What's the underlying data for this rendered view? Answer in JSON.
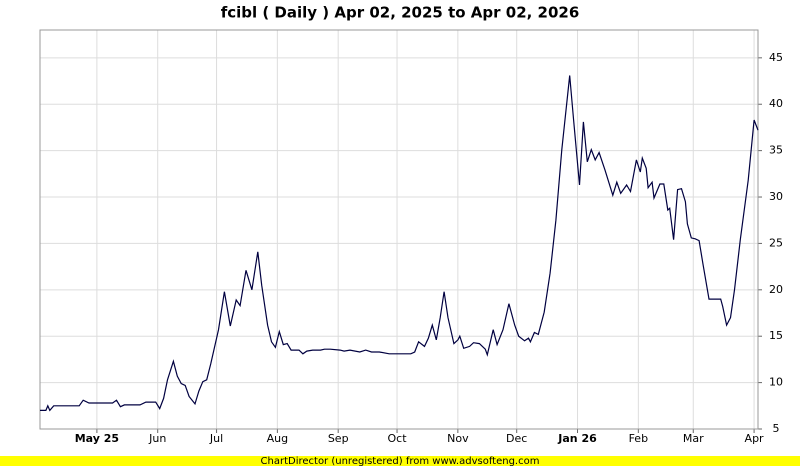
{
  "chart_data": {
    "type": "line",
    "title": "fcibl ( Daily ) Apr 02, 2025 to Apr 02, 2026",
    "footer": "ChartDirector (unregistered) from www.advsofteng.com",
    "x": [
      0,
      3,
      4,
      5,
      7,
      20,
      22,
      25,
      37,
      39,
      41,
      43,
      51,
      54,
      59,
      61,
      63,
      65,
      68,
      70,
      72,
      74,
      76,
      79,
      81,
      83,
      85,
      87,
      91,
      94,
      97,
      100,
      102,
      105,
      108,
      111,
      113,
      116,
      118,
      120,
      122,
      124,
      126,
      128,
      132,
      134,
      136,
      139,
      143,
      145,
      148,
      153,
      155,
      158,
      163,
      166,
      169,
      173,
      178,
      184,
      189,
      191,
      193,
      196,
      198,
      200,
      202,
      204,
      206,
      208,
      211,
      213,
      214,
      216,
      219,
      221,
      224,
      227,
      228,
      231,
      233,
      236,
      239,
      242,
      244,
      247,
      249,
      250,
      252,
      254,
      257,
      260,
      263,
      266,
      270,
      272,
      275,
      277,
      279,
      281,
      283,
      285,
      288,
      292,
      294,
      296,
      299,
      301,
      304,
      306,
      307,
      309,
      310,
      312,
      313,
      316,
      318,
      320,
      321,
      323,
      325,
      327,
      329,
      330,
      332,
      334,
      336,
      338,
      341,
      344,
      347,
      348,
      350,
      352,
      354,
      357,
      361,
      364,
      366
    ],
    "series": [
      {
        "name": "fcibl",
        "color": "#000040",
        "values": [
          7.0,
          7.0,
          7.5,
          7.0,
          7.5,
          7.5,
          8.1,
          7.8,
          7.8,
          8.1,
          7.4,
          7.6,
          7.6,
          7.9,
          7.9,
          7.2,
          8.3,
          10.3,
          12.3,
          10.7,
          9.9,
          9.7,
          8.5,
          7.7,
          9.1,
          10.1,
          10.3,
          12.0,
          15.7,
          19.8,
          16.1,
          18.9,
          18.3,
          22.1,
          20.0,
          24.1,
          20.5,
          16.2,
          14.4,
          13.8,
          15.5,
          14.1,
          14.2,
          13.5,
          13.5,
          13.1,
          13.4,
          13.5,
          13.5,
          13.6,
          13.6,
          13.5,
          13.4,
          13.5,
          13.3,
          13.5,
          13.3,
          13.3,
          13.1,
          13.1,
          13.1,
          13.3,
          14.4,
          13.9,
          14.8,
          16.2,
          14.6,
          17.0,
          19.8,
          17.0,
          14.2,
          14.6,
          15.0,
          13.7,
          13.9,
          14.3,
          14.2,
          13.6,
          13.0,
          15.7,
          14.1,
          15.7,
          18.5,
          16.2,
          15.0,
          14.5,
          14.8,
          14.4,
          15.4,
          15.2,
          17.6,
          21.8,
          27.5,
          35.1,
          43.1,
          38.3,
          31.3,
          38.1,
          33.8,
          35.1,
          34.0,
          34.8,
          32.9,
          30.2,
          31.6,
          30.4,
          31.3,
          30.6,
          34.0,
          32.7,
          34.2,
          33.1,
          31.0,
          31.6,
          29.9,
          31.4,
          31.4,
          28.6,
          28.8,
          25.4,
          30.8,
          30.9,
          29.5,
          27.1,
          25.6,
          25.5,
          25.3,
          22.7,
          19.0,
          19.0,
          19.0,
          18.2,
          16.2,
          17.0,
          20.0,
          25.4,
          31.8,
          38.3,
          37.2
        ]
      }
    ],
    "xlim": [
      0,
      366
    ],
    "xticks": [
      {
        "value": 29,
        "label": "May 25"
      },
      {
        "value": 60,
        "label": "Jun"
      },
      {
        "value": 90,
        "label": "Jul"
      },
      {
        "value": 121,
        "label": "Aug"
      },
      {
        "value": 152,
        "label": "Sep"
      },
      {
        "value": 182,
        "label": "Oct"
      },
      {
        "value": 213,
        "label": "Nov"
      },
      {
        "value": 243,
        "label": "Dec"
      },
      {
        "value": 274,
        "label": "Jan 26"
      },
      {
        "value": 305,
        "label": "Feb"
      },
      {
        "value": 333,
        "label": "Mar"
      },
      {
        "value": 364,
        "label": "Apr"
      }
    ],
    "ylim": [
      5,
      48
    ],
    "yticks": [
      5,
      10,
      15,
      20,
      25,
      30,
      35,
      40,
      45
    ],
    "grid": true
  }
}
